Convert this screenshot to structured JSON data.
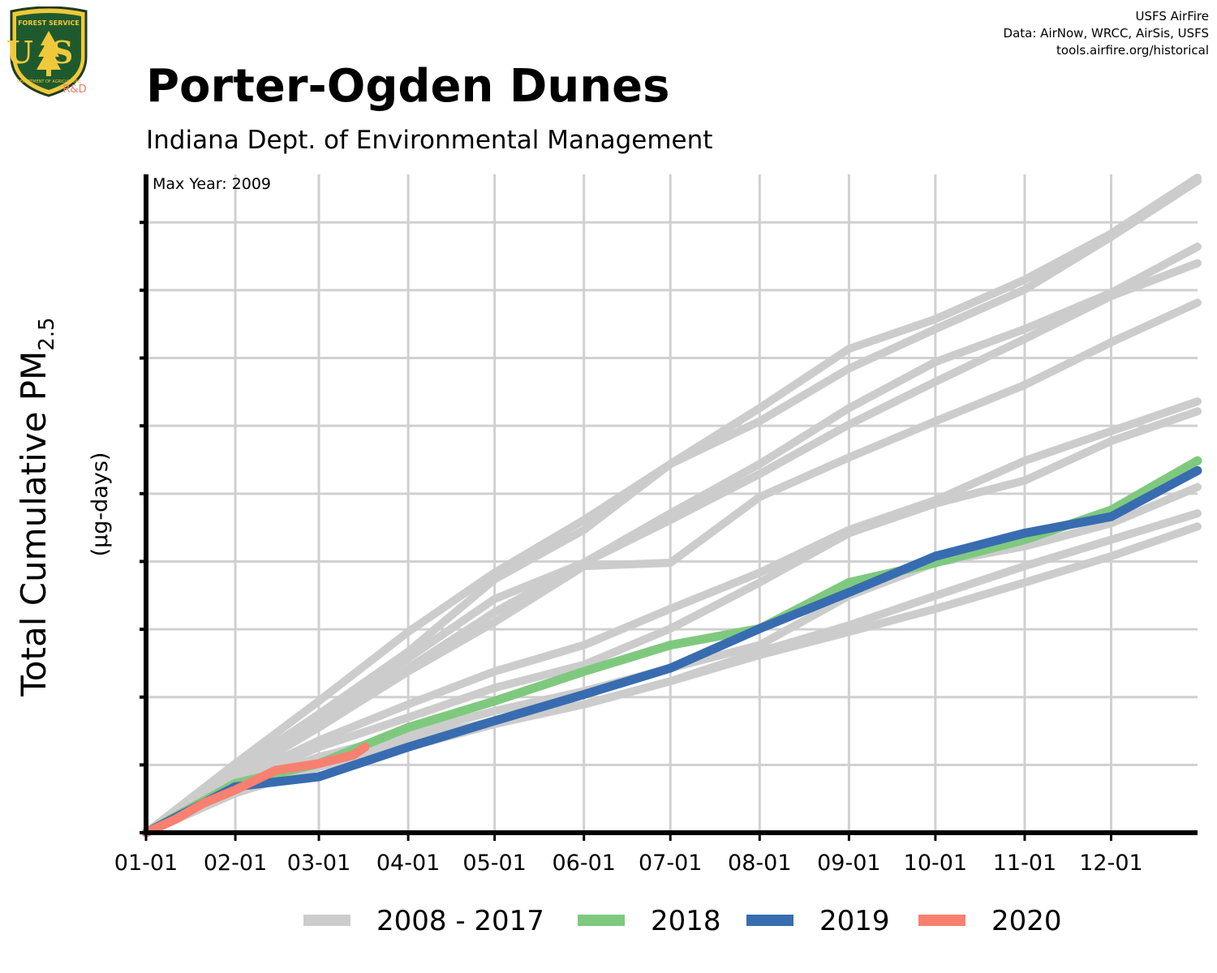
{
  "header": {
    "title": "Porter-Ogden Dunes",
    "subtitle": "Indiana Dept. of Environmental Management",
    "credits": [
      "USFS AirFire",
      "Data: AirNow, WRCC, AirSis, USFS",
      "tools.airfire.org/historical"
    ]
  },
  "logo": {
    "top_text": "FOREST SERVICE",
    "letters": "US",
    "bottom_text": "DEPARTMENT OF AGRICULTURE",
    "rd": "R&D",
    "icon": "tree-shield-icon"
  },
  "chart_data": {
    "type": "line",
    "title": "Porter-Ogden Dunes",
    "subtitle": "Indiana Dept. of Environmental Management",
    "ylabel_main": "Total Cumulative PM",
    "ylabel_sub": "2.5",
    "ylabel_units": "(µg-days)",
    "annotation": "Max Year: 2009",
    "xlim": [
      0,
      365
    ],
    "ylim": [
      0,
      100
    ],
    "x_ticks": [
      {
        "day": 0,
        "label": "01-01"
      },
      {
        "day": 31,
        "label": "02-01"
      },
      {
        "day": 60,
        "label": "03-01"
      },
      {
        "day": 91,
        "label": "04-01"
      },
      {
        "day": 121,
        "label": "05-01"
      },
      {
        "day": 152,
        "label": "06-01"
      },
      {
        "day": 182,
        "label": "07-01"
      },
      {
        "day": 213,
        "label": "08-01"
      },
      {
        "day": 244,
        "label": "09-01"
      },
      {
        "day": 274,
        "label": "10-01"
      },
      {
        "day": 305,
        "label": "11-01"
      },
      {
        "day": 335,
        "label": "12-01"
      }
    ],
    "y_ticks": [
      0,
      10.3,
      20.6,
      30.9,
      41.2,
      51.5,
      61.8,
      72.1,
      82.4,
      92.7
    ],
    "grid": true,
    "legend_position": "bottom",
    "legend": [
      {
        "label": "2008 - 2017",
        "color": "#cccccc"
      },
      {
        "label": "2018",
        "color": "#7fc97f"
      },
      {
        "label": "2019",
        "color": "#386cb0"
      },
      {
        "label": "2020",
        "color": "#f88070"
      }
    ],
    "series": [
      {
        "name": "2008 - 2017",
        "group": "historical",
        "color": "#cccccc",
        "x": [
          0,
          31,
          60,
          91,
          121,
          152,
          182,
          213,
          244,
          274,
          305,
          335,
          365
        ],
        "y": [
          0,
          10.5,
          20,
          30.5,
          39.5,
          47.5,
          56,
          64.5,
          73.5,
          78,
          84,
          91,
          99.5
        ]
      },
      {
        "name": "2008 - 2017",
        "group": "historical",
        "color": "#cccccc",
        "x": [
          0,
          31,
          60,
          91,
          121,
          152,
          182,
          213,
          244,
          274,
          305,
          335,
          365
        ],
        "y": [
          0,
          9.5,
          18,
          27.5,
          38.5,
          46,
          56,
          62.5,
          70.5,
          76.5,
          82.5,
          90.5,
          99
        ]
      },
      {
        "name": "2008 - 2017",
        "group": "historical",
        "color": "#cccccc",
        "x": [
          0,
          31,
          60,
          91,
          121,
          152,
          182,
          213,
          244,
          274,
          305,
          335,
          365
        ],
        "y": [
          0,
          9.5,
          17.5,
          26.5,
          35.5,
          41,
          48.5,
          56,
          64.5,
          71.5,
          76.5,
          82,
          89
        ]
      },
      {
        "name": "2008 - 2017",
        "group": "historical",
        "color": "#cccccc",
        "x": [
          0,
          31,
          60,
          91,
          121,
          152,
          182,
          213,
          244,
          274,
          305,
          335,
          365
        ],
        "y": [
          0,
          9,
          17,
          25,
          33.5,
          41,
          47.5,
          54.5,
          62,
          68.5,
          75,
          81.5,
          86.5
        ]
      },
      {
        "name": "2008 - 2017",
        "group": "historical",
        "color": "#cccccc",
        "x": [
          0,
          31,
          60,
          91,
          121,
          152,
          182,
          213,
          244,
          274,
          305,
          335,
          365
        ],
        "y": [
          0,
          8.5,
          16,
          24.5,
          32,
          40.5,
          41,
          51,
          57,
          62.5,
          68,
          74.5,
          80.5
        ]
      },
      {
        "name": "2008 - 2017",
        "group": "historical",
        "color": "#cccccc",
        "x": [
          0,
          31,
          60,
          91,
          121,
          152,
          182,
          213,
          244,
          274,
          305,
          335,
          365
        ],
        "y": [
          0,
          8,
          14,
          19.5,
          24.5,
          28.5,
          34,
          39.5,
          46,
          50.5,
          56.5,
          61,
          65.5
        ]
      },
      {
        "name": "2008 - 2017",
        "group": "historical",
        "color": "#cccccc",
        "x": [
          0,
          31,
          60,
          91,
          121,
          152,
          182,
          213,
          244,
          274,
          305,
          335,
          365
        ],
        "y": [
          0,
          7.5,
          13,
          17.5,
          22,
          25.5,
          31,
          38,
          45.5,
          50,
          53.5,
          59.5,
          64
        ]
      },
      {
        "name": "2008 - 2017",
        "group": "historical",
        "color": "#cccccc",
        "x": [
          0,
          31,
          60,
          91,
          121,
          152,
          182,
          213,
          244,
          274,
          305,
          335,
          365
        ],
        "y": [
          0,
          7,
          11.5,
          15,
          18.5,
          21.5,
          25,
          28.5,
          36,
          41,
          43.5,
          47,
          52.5
        ]
      },
      {
        "name": "2008 - 2017",
        "group": "historical",
        "color": "#cccccc",
        "x": [
          0,
          31,
          60,
          91,
          121,
          152,
          182,
          213,
          244,
          274,
          305,
          335,
          365
        ],
        "y": [
          0,
          6.5,
          10.5,
          14,
          17,
          19.5,
          23,
          27.5,
          31.5,
          36,
          40.5,
          44.5,
          48.5
        ]
      },
      {
        "name": "2008 - 2017",
        "group": "historical",
        "color": "#cccccc",
        "x": [
          0,
          31,
          60,
          91,
          121,
          152,
          182,
          213,
          244,
          274,
          305,
          335,
          365
        ],
        "y": [
          0,
          6,
          10,
          13,
          16.5,
          19.5,
          23,
          27,
          30.5,
          34,
          38,
          42,
          46.5
        ]
      },
      {
        "name": "2018",
        "group": "2018",
        "color": "#7fc97f",
        "x": [
          0,
          31,
          60,
          91,
          121,
          152,
          182,
          213,
          244,
          274,
          305,
          335,
          365
        ],
        "y": [
          0,
          7.5,
          10.5,
          16,
          20,
          24.5,
          28.5,
          31,
          38,
          41,
          44.5,
          49,
          56.5
        ]
      },
      {
        "name": "2019",
        "group": "2019",
        "color": "#386cb0",
        "x": [
          0,
          31,
          60,
          91,
          121,
          152,
          182,
          213,
          244,
          274,
          305,
          335,
          365
        ],
        "y": [
          0,
          7,
          8.5,
          13,
          17,
          21,
          25,
          31,
          36.5,
          42,
          45.5,
          48,
          55
        ]
      },
      {
        "name": "2020",
        "group": "2020",
        "color": "#f88070",
        "x": [
          0,
          10,
          20,
          31,
          45,
          60,
          72,
          76
        ],
        "y": [
          0,
          2,
          4.5,
          6.5,
          9.5,
          10.5,
          11.8,
          13
        ]
      }
    ]
  }
}
